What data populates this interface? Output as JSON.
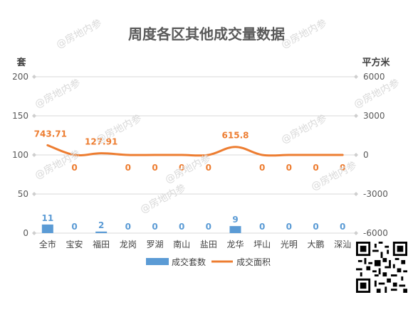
{
  "chart_data": {
    "type": "bar",
    "title": "周度各区其他成交量数据",
    "ylabel_left": "套",
    "ylabel_right": "平方米",
    "categories": [
      "全市",
      "宝安",
      "福田",
      "龙岗",
      "罗湖",
      "南山",
      "盐田",
      "龙华",
      "坪山",
      "光明",
      "大鹏",
      "深汕"
    ],
    "ylim_left": [
      0,
      200
    ],
    "yticks_left": [
      0,
      50,
      100,
      150,
      200
    ],
    "ylim_right": [
      -6000,
      6000
    ],
    "yticks_right": [
      -6000,
      -3000,
      0,
      3000,
      6000
    ],
    "series": [
      {
        "name": "成交套数",
        "type": "bar",
        "axis": "left",
        "color": "#5b9bd5",
        "values": [
          11,
          0,
          2,
          0,
          0,
          0,
          0,
          9,
          0,
          0,
          0,
          0
        ],
        "labels": [
          "11",
          "0",
          "2",
          "0",
          "0",
          "0",
          "0",
          "9",
          "0",
          "0",
          "0",
          "0"
        ]
      },
      {
        "name": "成交面积",
        "type": "line",
        "axis": "right",
        "color": "#ed7d31",
        "values": [
          743.71,
          0,
          127.91,
          0,
          0,
          0,
          0,
          615.8,
          0,
          0,
          0,
          0
        ],
        "labels": [
          "743.71",
          "0",
          "127.91",
          "0",
          "0",
          "0",
          "0",
          "615.8",
          "0",
          "0",
          "0",
          "0"
        ]
      }
    ],
    "grid": true,
    "legend_position": "bottom"
  },
  "watermark": "@房地内参"
}
